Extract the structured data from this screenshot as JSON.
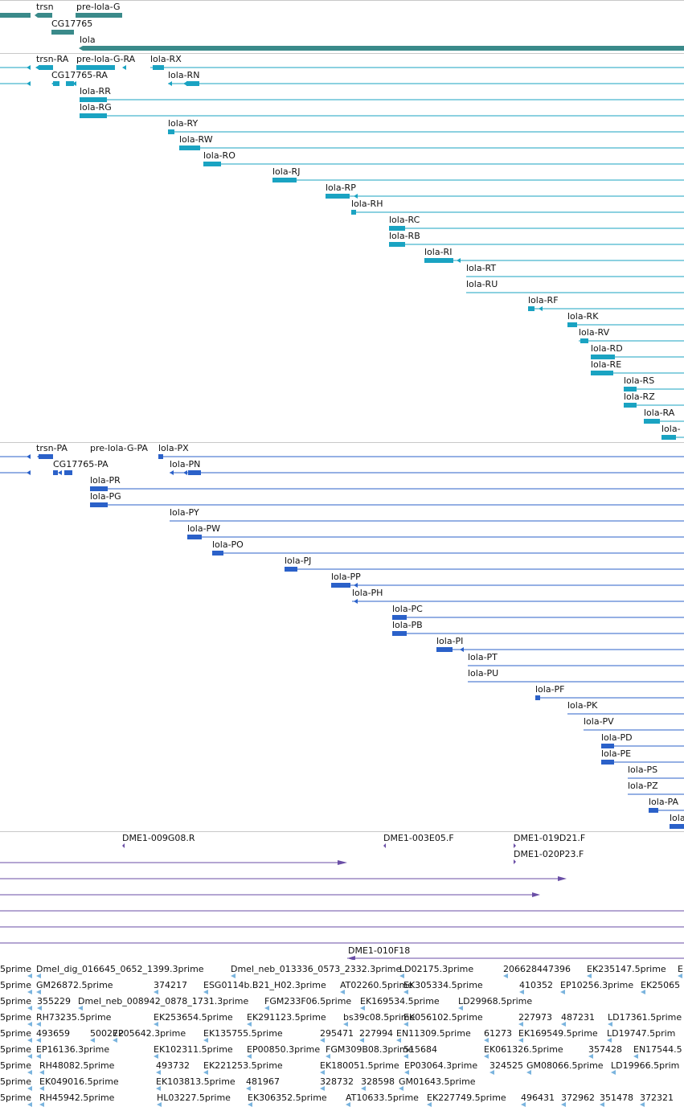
{
  "colors": {
    "gene": "#3a8a8a",
    "transcript": "#1aa3c2",
    "protein": "#2b61c9",
    "clone": "#6a4ea6",
    "est": "#7ab4de"
  },
  "genes": [
    "trsn",
    "pre-lola-G",
    "CG17765",
    "lola"
  ],
  "transcripts": [
    "trsn-RA",
    "pre-lola-G-RA",
    "lola-RX",
    "CG17765-RA",
    "lola-RN",
    "lola-RR",
    "lola-RG",
    "lola-RY",
    "lola-RW",
    "lola-RO",
    "lola-RJ",
    "lola-RP",
    "lola-RH",
    "lola-RC",
    "lola-RB",
    "lola-RI",
    "lola-RT",
    "lola-RU",
    "lola-RF",
    "lola-RK",
    "lola-RV",
    "lola-RD",
    "lola-RE",
    "lola-RS",
    "lola-RZ",
    "lola-RA",
    "lola-"
  ],
  "proteins": [
    "trsn-PA",
    "pre-lola-G-PA",
    "lola-PX",
    "CG17765-PA",
    "lola-PN",
    "lola-PR",
    "lola-PG",
    "lola-PY",
    "lola-PW",
    "lola-PO",
    "lola-PJ",
    "lola-PP",
    "lola-PH",
    "lola-PC",
    "lola-PB",
    "lola-PI",
    "lola-PT",
    "lola-PU",
    "lola-PF",
    "lola-PK",
    "lola-PV",
    "lola-PD",
    "lola-PE",
    "lola-PS",
    "lola-PZ",
    "lola-PA",
    "lola"
  ],
  "clones": [
    "DME1-009G08.R",
    "DME1-003E05.F",
    "DME1-019D21.F",
    "DME1-020P23.F",
    "DME1-010F18"
  ],
  "ests": [
    [
      "5prime",
      "Dmel_dig_016645_0652_1399.3prime",
      "Dmel_neb_013336_0573_2332.3prime",
      "LD02175.3prime",
      "206628447396",
      "EK235147.5prime",
      "E"
    ],
    [
      "5prime",
      "GM26872.5prime",
      "374217",
      "ESG0114b.B21_H02.3prime",
      "AT02260.5prime",
      "EK305334.5prime",
      "410352",
      "EP10256.3prime",
      "EK25065"
    ],
    [
      "5prime",
      "355229",
      "Dmel_neb_008942_0878_1731.3prime",
      "FGM233F06.5prime",
      "EK169534.5prime",
      "LD29968.5prime"
    ],
    [
      "5prime",
      "RH73235.5prime",
      "EK253654.5prime",
      "EK291123.5prime",
      "bs39c08.5prime",
      "EK056102.5prime",
      "227973",
      "487231",
      "LD17361.5prime"
    ],
    [
      "5prime",
      "493659",
      "500272",
      "EP05642.3prime",
      "EK135755.5prime",
      "295471",
      "227994",
      "EN11309.5prime",
      "61273",
      "EK169549.5prime",
      "LD19747.5prim"
    ],
    [
      "5prime",
      "EP16136.3prime",
      "EK102311.5prime",
      "EP00850.3prime",
      "FGM309B08.3prime",
      "515684",
      "EK061326.5prime",
      "357428",
      "EN17544.5"
    ],
    [
      "5prime",
      "RH48082.5prime",
      "493732",
      "EK221253.5prime",
      "EK180051.5prime",
      "EP03064.3prime",
      "324525",
      "GM08066.5prime",
      "LD19966.5prim"
    ],
    [
      "5prime",
      "EK049016.5prime",
      "EK103813.5prime",
      "481967",
      "328732",
      "328598",
      "GM01643.5prime"
    ],
    [
      "5prime",
      "RH45942.5prime",
      "HL03227.5prime",
      "EK306352.5prime",
      "AT10633.5prime",
      "EK227749.5prime",
      "496431",
      "372962",
      "351478",
      "372321"
    ]
  ]
}
